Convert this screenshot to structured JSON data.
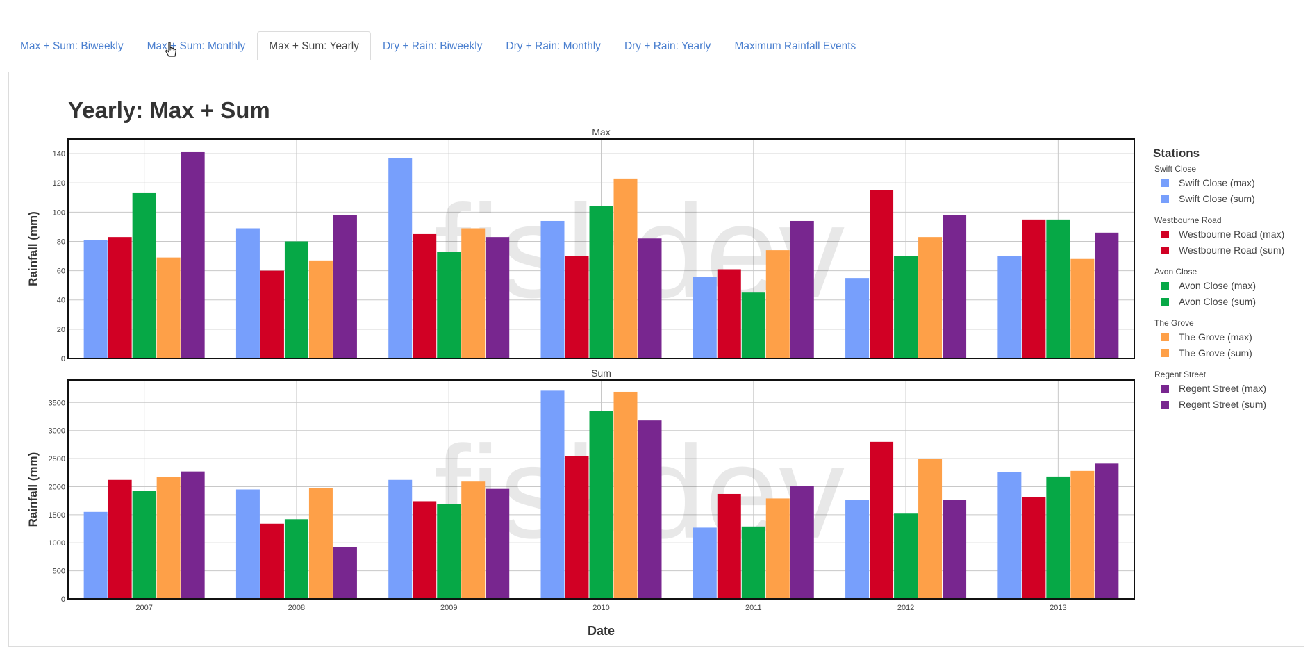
{
  "tabs": [
    {
      "label": "Max + Sum: Biweekly",
      "active": false
    },
    {
      "label": "Max + Sum: Monthly",
      "active": false
    },
    {
      "label": "Max + Sum: Yearly",
      "active": true
    },
    {
      "label": "Dry + Rain: Biweekly",
      "active": false
    },
    {
      "label": "Dry + Rain: Monthly",
      "active": false
    },
    {
      "label": "Dry + Rain: Yearly",
      "active": false
    },
    {
      "label": "Maximum Rainfall Events",
      "active": false
    }
  ],
  "watermark": "fiskdev",
  "chart_data": {
    "type": "bar",
    "title": "Yearly: Max + Sum",
    "xlabel": "Date",
    "categories": [
      "2007",
      "2008",
      "2009",
      "2010",
      "2011",
      "2012",
      "2013"
    ],
    "legend_title": "Stations",
    "legend_position": "right",
    "grid": true,
    "stations": [
      {
        "group": "Swift Close",
        "color": "#779ffc"
      },
      {
        "group": "Westbourne Road",
        "color": "#d10024"
      },
      {
        "group": "Avon Close",
        "color": "#06a846"
      },
      {
        "group": "The Grove",
        "color": "#fea048"
      },
      {
        "group": "Regent Street",
        "color": "#78268f"
      }
    ],
    "legend_entries": [
      {
        "group": "Swift Close",
        "items": [
          "Swift Close (max)",
          "Swift Close (sum)"
        ]
      },
      {
        "group": "Westbourne Road",
        "items": [
          "Westbourne Road (max)",
          "Westbourne Road (sum)"
        ]
      },
      {
        "group": "Avon Close",
        "items": [
          "Avon Close (max)",
          "Avon Close (sum)"
        ]
      },
      {
        "group": "The Grove",
        "items": [
          "The Grove (max)",
          "The Grove (sum)"
        ]
      },
      {
        "group": "Regent Street",
        "items": [
          "Regent Street (max)",
          "Regent Street (sum)"
        ]
      }
    ],
    "panels": [
      {
        "subtitle": "Max",
        "ylabel": "Rainfall (mm)",
        "ylim": [
          0,
          150
        ],
        "yticks": [
          0,
          20,
          40,
          60,
          80,
          100,
          120,
          140
        ],
        "series": [
          {
            "name": "Swift Close (max)",
            "values": [
              81,
              89,
              137,
              94,
              56,
              55,
              70
            ]
          },
          {
            "name": "Westbourne Road (max)",
            "values": [
              83,
              60,
              85,
              70,
              61,
              115,
              95
            ]
          },
          {
            "name": "Avon Close (max)",
            "values": [
              113,
              80,
              73,
              104,
              45,
              70,
              95
            ]
          },
          {
            "name": "The Grove (max)",
            "values": [
              69,
              67,
              89,
              123,
              74,
              83,
              68
            ]
          },
          {
            "name": "Regent Street (max)",
            "values": [
              141,
              98,
              83,
              82,
              94,
              98,
              86
            ]
          }
        ]
      },
      {
        "subtitle": "Sum",
        "ylabel": "Rainfall (mm)",
        "ylim": [
          0,
          3900
        ],
        "yticks": [
          0,
          500,
          1000,
          1500,
          2000,
          2500,
          3000,
          3500
        ],
        "series": [
          {
            "name": "Swift Close (sum)",
            "values": [
              1550,
              1950,
              2120,
              3710,
              1270,
              1760,
              2260
            ]
          },
          {
            "name": "Westbourne Road (sum)",
            "values": [
              2120,
              1340,
              1740,
              2550,
              1870,
              2800,
              1810
            ]
          },
          {
            "name": "Avon Close (sum)",
            "values": [
              1930,
              1420,
              1690,
              3350,
              1290,
              1520,
              2180
            ]
          },
          {
            "name": "The Grove (sum)",
            "values": [
              2170,
              1980,
              2090,
              3690,
              1790,
              2500,
              2280
            ]
          },
          {
            "name": "Regent Street (sum)",
            "values": [
              2270,
              920,
              1960,
              3180,
              2010,
              1770,
              2410
            ]
          }
        ]
      }
    ]
  }
}
